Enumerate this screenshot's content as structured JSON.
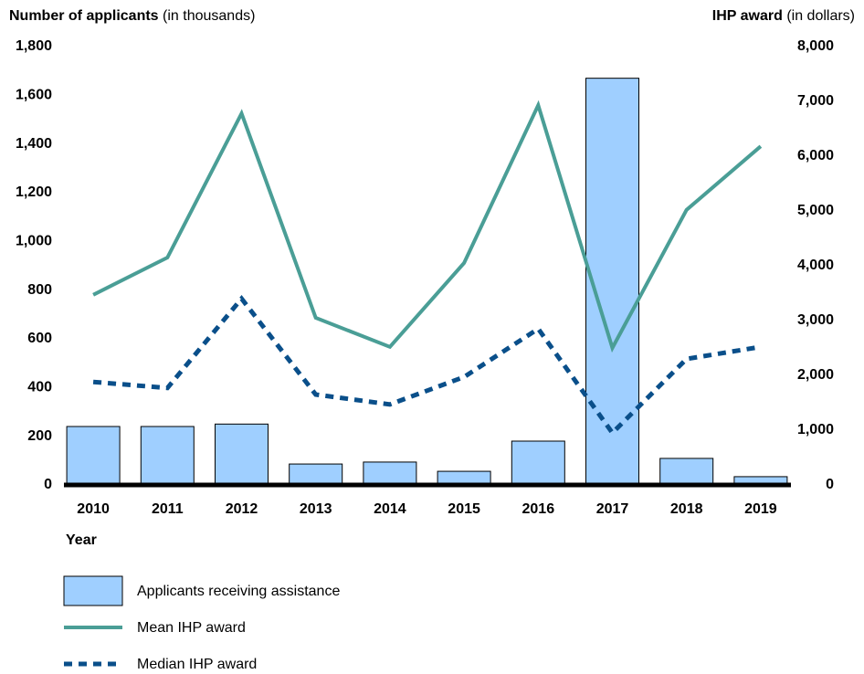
{
  "chart_data": {
    "type": "bar-line",
    "y_label": {
      "bold": "Number of applicants",
      "unit": "(in thousands)"
    },
    "y2_label": {
      "bold": "IHP award",
      "unit": "(in dollars)"
    },
    "x_label": "Year",
    "categories": [
      "2010",
      "2011",
      "2012",
      "2013",
      "2014",
      "2015",
      "2016",
      "2017",
      "2018",
      "2019"
    ],
    "series": [
      {
        "name": "Applicants receiving assistance",
        "type": "bar",
        "color": "#9fcfff",
        "axis": "y",
        "values": [
          240,
          240,
          250,
          86,
          94,
          56,
          180,
          1670,
          109,
          34
        ]
      },
      {
        "name": "Mean IHP award",
        "type": "line",
        "color": "#4a9e96",
        "axis": "y2",
        "values": [
          3470,
          4150,
          6780,
          3050,
          2520,
          4050,
          6930,
          2500,
          5020,
          6180
        ]
      },
      {
        "name": "Median IHP award",
        "type": "line",
        "dashed": true,
        "color": "#0a4f8a",
        "axis": "y2",
        "values": [
          1880,
          1770,
          3400,
          1650,
          1470,
          1970,
          2850,
          950,
          2300,
          2520
        ]
      }
    ],
    "ylim": [
      0,
      1800
    ],
    "yticks": [
      0,
      200,
      400,
      600,
      800,
      {
        "value": 1000,
        "label": "1,000"
      },
      {
        "value": 1200,
        "label": "1,200"
      },
      {
        "value": 1400,
        "label": "1,400"
      },
      {
        "value": 1600,
        "label": "1,600"
      },
      {
        "value": 1800,
        "label": "1,800"
      }
    ],
    "y2lim": [
      0,
      8000
    ],
    "y2ticks": [
      0,
      {
        "value": 1000,
        "label": "1,000"
      },
      {
        "value": 2000,
        "label": "2,000"
      },
      {
        "value": 3000,
        "label": "3,000"
      },
      {
        "value": 4000,
        "label": "4,000"
      },
      {
        "value": 5000,
        "label": "5,000"
      },
      {
        "value": 6000,
        "label": "6,000"
      },
      {
        "value": 7000,
        "label": "7,000"
      },
      {
        "value": 8000,
        "label": "8,000"
      }
    ],
    "grid": false,
    "legend": "bottom"
  }
}
